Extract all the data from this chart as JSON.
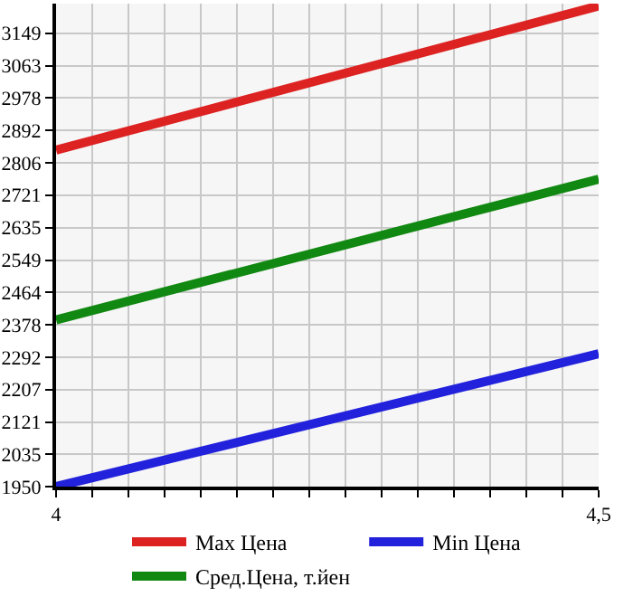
{
  "chart_data": {
    "type": "line",
    "x": [
      4,
      4.5
    ],
    "series": [
      {
        "name": "Max Цена",
        "color": "#dd2222",
        "values": [
          2840,
          3221
        ]
      },
      {
        "name": "Min Цена",
        "color": "#2222dd",
        "values": [
          1950,
          2301
        ]
      },
      {
        "name": "Сред.Цена, т.йен",
        "color": "#118811",
        "values": [
          2391,
          2763
        ]
      }
    ],
    "xlim": [
      4,
      4.5
    ],
    "xticks": [
      4,
      {
        "value": 4.0333,
        "label": null
      },
      {
        "value": 4.0667,
        "label": null
      },
      {
        "value": 4.1,
        "label": null
      },
      {
        "value": 4.1333,
        "label": null
      },
      {
        "value": 4.1667,
        "label": null
      },
      {
        "value": 4.2,
        "label": null
      },
      {
        "value": 4.2333,
        "label": null
      },
      {
        "value": 4.2667,
        "label": null
      },
      {
        "value": 4.3,
        "label": null
      },
      {
        "value": 4.3333,
        "label": null
      },
      {
        "value": 4.3667,
        "label": null
      },
      {
        "value": 4.4,
        "label": null
      },
      {
        "value": 4.4333,
        "label": null
      },
      {
        "value": 4.4667,
        "label": null
      },
      {
        "value": 4.5,
        "label": "4,5"
      }
    ],
    "ylim": [
      1950,
      3227
    ],
    "yticks": [
      1950,
      2035,
      2121,
      2207,
      2292,
      2378,
      2464,
      2549,
      2635,
      2721,
      2806,
      2892,
      2978,
      3063,
      3149
    ],
    "grid": true,
    "legend": "bottom",
    "marker": "none",
    "line_style": "solid"
  }
}
